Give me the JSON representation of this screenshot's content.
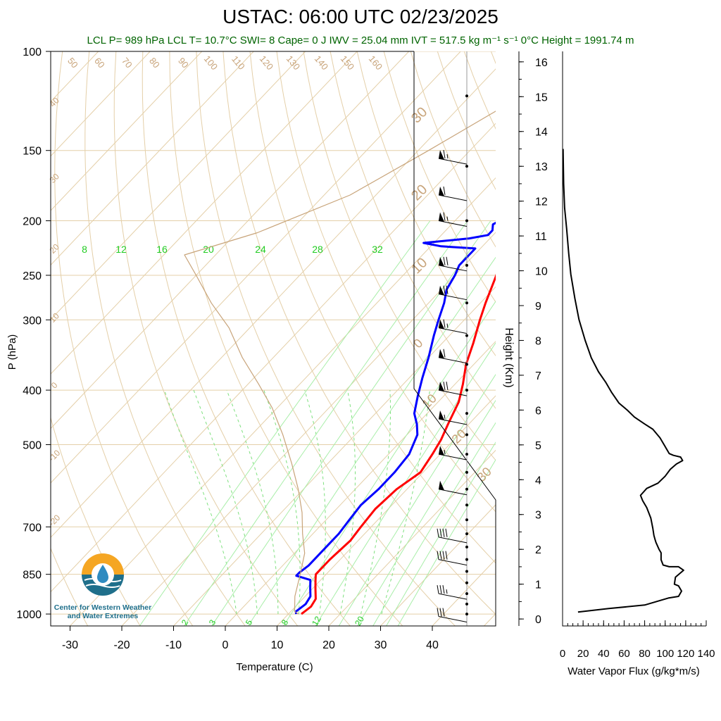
{
  "title": "USTAC: 06:00 UTC 02/23/2025",
  "stats": "LCL P= 989 hPa  LCL T= 10.7°C  SWI= 8  Cape= 0 J  IWV = 25.04 mm  IVT = 517.5 kg m⁻¹ s⁻¹  0°C Height = 1991.74 m",
  "logo": {
    "line1": "Center for Western Weather",
    "line2": "and Water Extremes"
  },
  "chart_data": [
    {
      "type": "line",
      "name": "skew-t",
      "xlabel": "Temperature (C)",
      "ylabel": "P (hPa)",
      "xlim": [
        -34,
        52
      ],
      "ylim": [
        1050,
        100
      ],
      "y_scale": "log",
      "x_ticks": [
        -30,
        -20,
        -10,
        0,
        10,
        20,
        30,
        40
      ],
      "y_ticks": [
        100,
        150,
        200,
        250,
        300,
        400,
        500,
        700,
        850,
        1000
      ],
      "mixing_ratio_top_labels": [
        "8",
        "12",
        "16",
        "20",
        "24",
        "28",
        "32"
      ],
      "mixing_ratio_bottom_labels": [
        "2",
        "3",
        "5",
        "8",
        "12",
        "20"
      ],
      "dry_adiabat_labels": [
        "50",
        "60",
        "70",
        "80",
        "90",
        "100",
        "110",
        "120",
        "130",
        "140",
        "150",
        "160"
      ],
      "isotherm_labels": [
        "40",
        "30",
        "20",
        "10",
        "0",
        "-10",
        "-20",
        "30",
        "20",
        "10",
        "0",
        "10",
        "20",
        "30"
      ],
      "series": [
        {
          "name": "temperature",
          "color": "#ff0000",
          "points": [
            [
              12.5,
              1000
            ],
            [
              13,
              970
            ],
            [
              12.5,
              940
            ],
            [
              10.5,
              900
            ],
            [
              9,
              870
            ],
            [
              8,
              850
            ],
            [
              8,
              800
            ],
            [
              8.5,
              740
            ],
            [
              8,
              700
            ],
            [
              7.5,
              650
            ],
            [
              8,
              600
            ],
            [
              9.5,
              560
            ],
            [
              8.5,
              520
            ],
            [
              7.5,
              490
            ],
            [
              6,
              460
            ],
            [
              4,
              420
            ],
            [
              1.5,
              390
            ],
            [
              -1.5,
              360
            ],
            [
              -4,
              330
            ],
            [
              -7,
              300
            ],
            [
              -9,
              280
            ],
            [
              -12,
              250
            ],
            [
              -14,
              235
            ],
            [
              -16,
              222
            ],
            [
              -15,
              218
            ],
            [
              -12,
              217
            ],
            [
              -7,
              213
            ],
            [
              -2,
              208
            ],
            [
              2,
              203
            ],
            [
              5,
              196
            ],
            [
              7,
              192
            ],
            [
              9,
              187
            ],
            [
              9.5,
              180
            ],
            [
              9,
              170
            ],
            [
              11,
              163
            ],
            [
              12.5,
              157
            ],
            [
              12.5,
              152
            ],
            [
              12,
              150
            ]
          ]
        },
        {
          "name": "dewpoint",
          "color": "#0000ff",
          "points": [
            [
              11.5,
              1000
            ],
            [
              11,
              990
            ],
            [
              11.5,
              960
            ],
            [
              11,
              930
            ],
            [
              9.5,
              900
            ],
            [
              8,
              870
            ],
            [
              4.5,
              855
            ],
            [
              4.5,
              845
            ],
            [
              5,
              820
            ],
            [
              5,
              760
            ],
            [
              5,
              720
            ],
            [
              4.5,
              680
            ],
            [
              4,
              640
            ],
            [
              4.5,
              600
            ],
            [
              4.5,
              560
            ],
            [
              4,
              520
            ],
            [
              2,
              480
            ],
            [
              0,
              460
            ],
            [
              -2.5,
              440
            ],
            [
              -5,
              410
            ],
            [
              -7.5,
              380
            ],
            [
              -10,
              350
            ],
            [
              -13,
              320
            ],
            [
              -15,
              300
            ],
            [
              -17,
              280
            ],
            [
              -19,
              265
            ],
            [
              -20,
              250
            ],
            [
              -21,
              240
            ],
            [
              -21,
              230
            ],
            [
              -21,
              224
            ],
            [
              -28,
              222
            ],
            [
              -32,
              219
            ],
            [
              -24,
              215
            ],
            [
              -21,
              212
            ],
            [
              -21,
              208
            ],
            [
              -22,
              203
            ],
            [
              -21,
              198
            ],
            [
              -22,
              190
            ],
            [
              -21,
              185
            ],
            [
              -22,
              178
            ],
            [
              -21,
              170
            ],
            [
              -20,
              160
            ],
            [
              -20,
              155
            ],
            [
              -19,
              150
            ]
          ]
        },
        {
          "name": "parcel",
          "color": "#c8a47a",
          "points": [
            [
              12,
              1000
            ],
            [
              10.7,
              989
            ],
            [
              8,
              930
            ],
            [
              5,
              850
            ],
            [
              2,
              780
            ],
            [
              -2,
              720
            ],
            [
              -6,
              660
            ],
            [
              -11,
              600
            ],
            [
              -17,
              540
            ],
            [
              -24,
              480
            ],
            [
              -31,
              430
            ],
            [
              -38,
              390
            ],
            [
              -46,
              350
            ],
            [
              -54,
              310
            ],
            [
              -62,
              280
            ],
            [
              -70,
              250
            ],
            [
              -76,
              230
            ],
            [
              -66,
              210
            ],
            [
              -55,
              180
            ],
            [
              -48,
              150
            ],
            [
              -40,
              120
            ],
            [
              -36,
              100
            ]
          ]
        }
      ],
      "wind_barbs": [
        {
          "p": 155,
          "speed_kt": 65,
          "dir_deg": 250
        },
        {
          "p": 180,
          "speed_kt": 60,
          "dir_deg": 255
        },
        {
          "p": 200,
          "speed_kt": 65,
          "dir_deg": 255
        },
        {
          "p": 240,
          "speed_kt": 70,
          "dir_deg": 255
        },
        {
          "p": 270,
          "speed_kt": 70,
          "dir_deg": 250
        },
        {
          "p": 310,
          "speed_kt": 65,
          "dir_deg": 250
        },
        {
          "p": 350,
          "speed_kt": 60,
          "dir_deg": 250
        },
        {
          "p": 400,
          "speed_kt": 70,
          "dir_deg": 245
        },
        {
          "p": 450,
          "speed_kt": 55,
          "dir_deg": 240
        },
        {
          "p": 520,
          "speed_kt": 55,
          "dir_deg": 235
        },
        {
          "p": 600,
          "speed_kt": 50,
          "dir_deg": 230
        },
        {
          "p": 730,
          "speed_kt": 40,
          "dir_deg": 220
        },
        {
          "p": 800,
          "speed_kt": 40,
          "dir_deg": 220
        },
        {
          "p": 920,
          "speed_kt": 35,
          "dir_deg": 215
        },
        {
          "p": 1010,
          "speed_kt": 30,
          "dir_deg": 210
        }
      ]
    },
    {
      "type": "line",
      "name": "water-vapor-flux",
      "xlabel": "Water Vapor Flux (g/kg*m/s)",
      "ylabel": "Height (Km)",
      "xlim": [
        0,
        140
      ],
      "ylim": [
        -0.2,
        16.3
      ],
      "x_ticks": [
        0,
        20,
        40,
        60,
        80,
        100,
        120,
        140
      ],
      "y_ticks": [
        0,
        1,
        2,
        3,
        4,
        5,
        6,
        7,
        8,
        9,
        10,
        11,
        12,
        13,
        14,
        15,
        16
      ],
      "series": [
        {
          "name": "",
          "color": "#000000",
          "points": [
            [
              15,
              0.2
            ],
            [
              45,
              0.3
            ],
            [
              80,
              0.4
            ],
            [
              103,
              0.6
            ],
            [
              113,
              0.65
            ],
            [
              116,
              0.8
            ],
            [
              113,
              0.95
            ],
            [
              109,
              1.0
            ],
            [
              110,
              1.2
            ],
            [
              118,
              1.4
            ],
            [
              113,
              1.5
            ],
            [
              104,
              1.5
            ],
            [
              98,
              1.55
            ],
            [
              96,
              1.7
            ],
            [
              96,
              1.9
            ],
            [
              94,
              2.0
            ],
            [
              91,
              2.2
            ],
            [
              90,
              2.3
            ],
            [
              89,
              2.4
            ],
            [
              88,
              2.6
            ],
            [
              86,
              2.9
            ],
            [
              82,
              3.2
            ],
            [
              78,
              3.4
            ],
            [
              76,
              3.55
            ],
            [
              82,
              3.75
            ],
            [
              93,
              3.9
            ],
            [
              100,
              4.1
            ],
            [
              105,
              4.3
            ],
            [
              111,
              4.45
            ],
            [
              117,
              4.55
            ],
            [
              115,
              4.65
            ],
            [
              108,
              4.7
            ],
            [
              104,
              4.75
            ],
            [
              100,
              4.95
            ],
            [
              95,
              5.2
            ],
            [
              88,
              5.45
            ],
            [
              80,
              5.6
            ],
            [
              70,
              5.8
            ],
            [
              63,
              6.0
            ],
            [
              55,
              6.2
            ],
            [
              48,
              6.5
            ],
            [
              42,
              6.8
            ],
            [
              35,
              7.1
            ],
            [
              28,
              7.5
            ],
            [
              22,
              8.0
            ],
            [
              16,
              8.6
            ],
            [
              12,
              9.2
            ],
            [
              8,
              9.9
            ],
            [
              6,
              10.5
            ],
            [
              4,
              11.2
            ],
            [
              2,
              11.8
            ],
            [
              1,
              12.5
            ],
            [
              0.5,
              13.5
            ]
          ]
        }
      ]
    }
  ]
}
